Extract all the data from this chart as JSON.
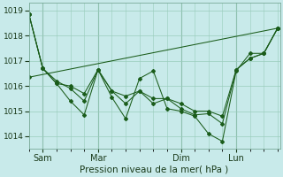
{
  "bg_color": "#c8eaea",
  "grid_color": "#99ccbb",
  "line_color": "#1a5c1a",
  "xlabel": "Pression niveau de la mer( hPa )",
  "ylim": [
    1013.5,
    1019.3
  ],
  "yticks": [
    1014,
    1015,
    1016,
    1017,
    1018,
    1019
  ],
  "xtick_labels": [
    "Sam",
    "Mar",
    "Dim",
    "Lun"
  ],
  "xtick_positions": [
    12,
    36,
    72,
    96
  ],
  "xlim": [
    6,
    115
  ],
  "total_hours": 114,
  "line1": {
    "x": [
      6,
      12,
      18,
      24,
      30,
      36,
      42,
      48,
      54,
      60,
      66,
      72,
      78,
      84,
      90,
      96,
      102,
      108,
      114
    ],
    "y": [
      1018.85,
      1016.7,
      1016.1,
      1015.4,
      1014.85,
      1016.65,
      1015.55,
      1014.7,
      1016.3,
      1016.6,
      1015.1,
      1015.0,
      1014.8,
      1014.1,
      1013.8,
      1016.6,
      1017.3,
      1017.3,
      1018.3
    ]
  },
  "line2": {
    "x": [
      6,
      12,
      18,
      24,
      30,
      36,
      42,
      48,
      54,
      60,
      66,
      72,
      78,
      84,
      90,
      96,
      102,
      108,
      114
    ],
    "y": [
      1018.85,
      1016.7,
      1016.2,
      1015.9,
      1015.4,
      1016.65,
      1015.8,
      1015.3,
      1015.8,
      1015.3,
      1015.5,
      1015.1,
      1014.85,
      1014.9,
      1014.5,
      1016.65,
      1017.1,
      1017.3,
      1018.3
    ]
  },
  "line3": {
    "x": [
      6,
      12,
      18,
      24,
      30,
      36,
      42,
      48,
      54,
      60,
      66,
      72,
      78,
      84,
      90,
      96,
      102,
      108,
      114
    ],
    "y": [
      1018.85,
      1016.7,
      1016.1,
      1016.0,
      1015.7,
      1016.65,
      1015.8,
      1015.6,
      1015.8,
      1015.5,
      1015.5,
      1015.3,
      1015.0,
      1015.0,
      1014.8,
      1016.65,
      1017.1,
      1017.3,
      1018.3
    ]
  },
  "trend_line": {
    "x": [
      6,
      114
    ],
    "y": [
      1016.35,
      1018.3
    ]
  },
  "jagged_main": {
    "x": [
      6,
      12,
      18,
      24,
      36,
      48,
      54,
      60,
      66,
      72,
      78,
      84,
      90,
      96,
      102,
      108,
      114
    ],
    "y": [
      1018.85,
      1016.75,
      1016.2,
      1015.4,
      1016.65,
      1014.85,
      1016.55,
      1016.5,
      1016.05,
      1015.05,
      1014.8,
      1014.05,
      1013.8,
      1016.65,
      1016.8,
      1017.3,
      1018.3
    ]
  }
}
